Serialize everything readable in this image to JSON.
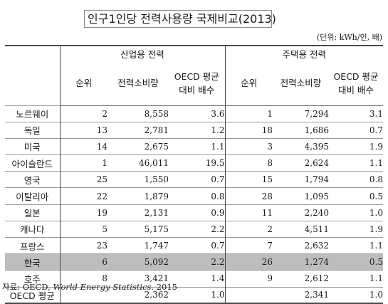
{
  "title": "인구1인당 전력사용량 국제비교(2013)",
  "unit": "(단위: kWh/인, 배)",
  "groups": {
    "industrial": "산업용 전력",
    "residential": "주택용 전력"
  },
  "sub": {
    "rank": "순위",
    "consumption": "전력소비량",
    "oecd_1": "OECD 평균",
    "oecd_2": "대비 배수"
  },
  "rows": [
    {
      "country": "노르웨이",
      "i_rank": "2",
      "i_cons": "8,558",
      "i_ratio": "3.6",
      "r_rank": "1",
      "r_cons": "7,294",
      "r_ratio": "3.1"
    },
    {
      "country": "독일",
      "i_rank": "13",
      "i_cons": "2,781",
      "i_ratio": "1.2",
      "r_rank": "18",
      "r_cons": "1,686",
      "r_ratio": "0.7"
    },
    {
      "country": "미국",
      "i_rank": "14",
      "i_cons": "2,675",
      "i_ratio": "1.1",
      "r_rank": "3",
      "r_cons": "4,395",
      "r_ratio": "1.9"
    },
    {
      "country": "아이슬란드",
      "i_rank": "1",
      "i_cons": "46,011",
      "i_ratio": "19.5",
      "r_rank": "8",
      "r_cons": "2,624",
      "r_ratio": "1.1"
    },
    {
      "country": "영국",
      "i_rank": "25",
      "i_cons": "1,550",
      "i_ratio": "0.7",
      "r_rank": "15",
      "r_cons": "1,794",
      "r_ratio": "0.8"
    },
    {
      "country": "이탈리아",
      "i_rank": "22",
      "i_cons": "1,879",
      "i_ratio": "0.8",
      "r_rank": "28",
      "r_cons": "1,095",
      "r_ratio": "0.5"
    },
    {
      "country": "일본",
      "i_rank": "19",
      "i_cons": "2,131",
      "i_ratio": "0.9",
      "r_rank": "11",
      "r_cons": "2,240",
      "r_ratio": "1.0"
    },
    {
      "country": "캐나다",
      "i_rank": "5",
      "i_cons": "5,175",
      "i_ratio": "2.2",
      "r_rank": "2",
      "r_cons": "4,511",
      "r_ratio": "1.9"
    },
    {
      "country": "프랑스",
      "i_rank": "23",
      "i_cons": "1,747",
      "i_ratio": "0.7",
      "r_rank": "7",
      "r_cons": "2,632",
      "r_ratio": "1.1"
    },
    {
      "country": "한국",
      "i_rank": "6",
      "i_cons": "5,092",
      "i_ratio": "2.2",
      "r_rank": "26",
      "r_cons": "1,274",
      "r_ratio": "0.5",
      "highlight": true
    },
    {
      "country": "호주",
      "i_rank": "8",
      "i_cons": "3,421",
      "i_ratio": "1.4",
      "r_rank": "9",
      "r_cons": "2,612",
      "r_ratio": "1.1"
    },
    {
      "country": "OECD 평균",
      "i_rank": "",
      "i_cons": "2,362",
      "i_ratio": "1.0",
      "r_rank": "",
      "r_cons": "2,341",
      "r_ratio": "1.0"
    }
  ],
  "source": {
    "prefix": "자료: OECD, ",
    "publication": "World Energy Statistics",
    "suffix": ". 2015"
  }
}
